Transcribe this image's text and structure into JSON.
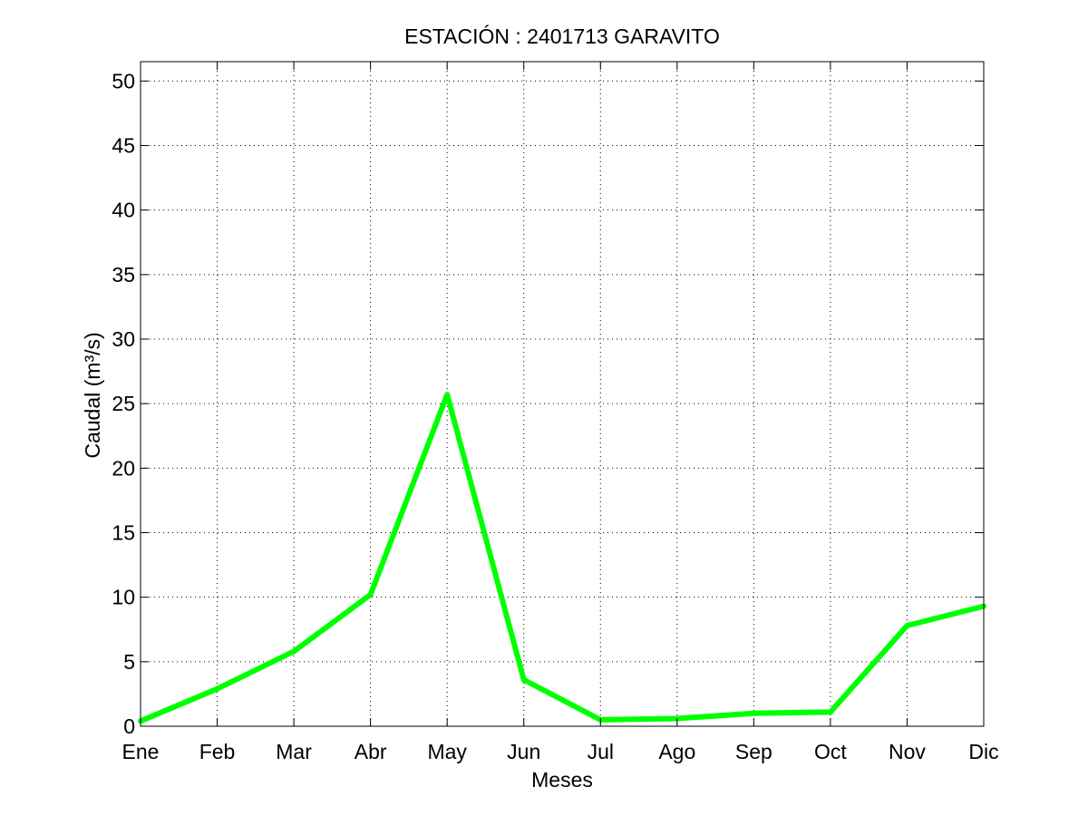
{
  "chart_data": {
    "type": "line",
    "title": "ESTACIÓN :  2401713  GARAVITO",
    "xlabel": "Meses",
    "ylabel": "Caudal (m³/s)",
    "categories": [
      "Ene",
      "Feb",
      "Mar",
      "Abr",
      "May",
      "Jun",
      "Jul",
      "Ago",
      "Sep",
      "Oct",
      "Nov",
      "Dic"
    ],
    "yticks": [
      0,
      5,
      10,
      15,
      20,
      25,
      30,
      35,
      40,
      45,
      50
    ],
    "ylim": [
      0,
      51.5
    ],
    "grid": true,
    "series": [
      {
        "values": [
          0.4,
          2.9,
          5.8,
          10.2,
          25.7,
          3.6,
          0.5,
          0.6,
          1.0,
          1.1,
          7.8,
          9.3
        ],
        "color": "#00ff00"
      }
    ]
  }
}
